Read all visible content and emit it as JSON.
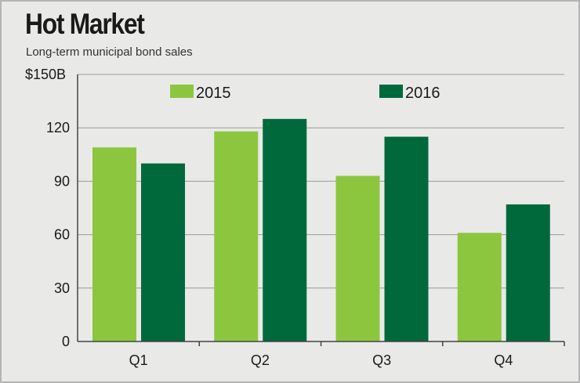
{
  "colors": {
    "background": "#e9e9e8",
    "grid": "#9a9a9a",
    "axis": "#444444",
    "series_2015": "#8cc63f",
    "series_2016": "#00693c"
  },
  "chart_data": {
    "type": "bar",
    "title": "Hot Market",
    "subtitle": "Long-term municipal bond sales",
    "categories": [
      "Q1",
      "Q2",
      "Q3",
      "Q4"
    ],
    "series": [
      {
        "name": "2015",
        "values": [
          109,
          118,
          93,
          61
        ],
        "color": "#8cc63f"
      },
      {
        "name": "2016",
        "values": [
          100,
          125,
          115,
          77
        ],
        "color": "#00693c"
      }
    ],
    "ylim": [
      0,
      150
    ],
    "yticks": [
      0,
      30,
      60,
      90,
      120,
      150
    ],
    "ytick_labels": [
      "0",
      "30",
      "60",
      "90",
      "120",
      "$150B"
    ],
    "grid": true,
    "legend_position": "top"
  }
}
